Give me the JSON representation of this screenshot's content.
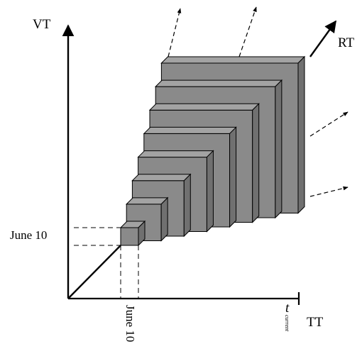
{
  "axes": {
    "vertical_label": "VT",
    "horizontal_label": "TT",
    "diagonal_label": "RT"
  },
  "markers": {
    "vt_marker_label": "June 10",
    "tt_marker_label": "June 10",
    "tt_end_label": "t",
    "tt_end_subscript": "current"
  },
  "colors": {
    "box_front": "#8a8a8a",
    "box_side": "#707070",
    "box_top": "#a3a3a3",
    "stroke": "#000000"
  },
  "box_count": 8,
  "dashed_arrow_count": 4
}
